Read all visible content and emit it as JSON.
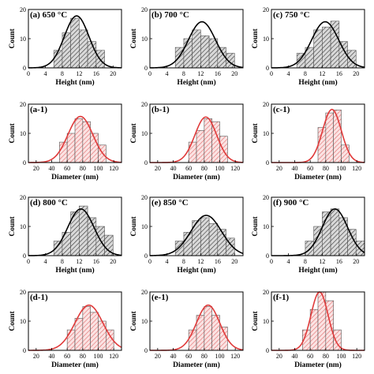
{
  "colors": {
    "height_bar_hatch": "#333333",
    "height_bar_fill": "#d9d9d9",
    "height_fit": "#000000",
    "diameter_bar_hatch": "#e06a6a",
    "diameter_bar_fill": "#fbe3e3",
    "diameter_fit": "#e03a3a",
    "axis": "#000000"
  },
  "chart_data": [
    {
      "id": "a",
      "type": "bar",
      "panel_label": "(a) 650 °C",
      "xlabel": "Height (nm)",
      "ylabel": "Count",
      "kind": "height",
      "xlim": [
        0,
        22
      ],
      "ylim": [
        0,
        20
      ],
      "xticks": [
        0,
        4,
        8,
        12,
        16,
        20
      ],
      "yticks": [
        0,
        10,
        20
      ],
      "bin_width": 2,
      "bin_lefts": [
        6,
        8,
        10,
        12,
        14,
        16
      ],
      "values": [
        6,
        12,
        17,
        13,
        9,
        6
      ],
      "fit": {
        "mean": 11.4,
        "sigma": 2.9,
        "peak": 17.8
      }
    },
    {
      "id": "b",
      "type": "bar",
      "panel_label": "(b) 700 °C",
      "xlabel": "Height (nm)",
      "ylabel": "Count",
      "kind": "height",
      "xlim": [
        0,
        22
      ],
      "ylim": [
        0,
        20
      ],
      "xticks": [
        0,
        4,
        8,
        12,
        16,
        20
      ],
      "yticks": [
        0,
        10,
        20
      ],
      "bin_width": 2,
      "bin_lefts": [
        6,
        8,
        10,
        12,
        14,
        16,
        18
      ],
      "values": [
        7,
        10,
        13,
        11,
        10,
        7,
        5
      ],
      "fit": {
        "mean": 12.3,
        "sigma": 3.2,
        "peak": 15.8
      }
    },
    {
      "id": "c",
      "type": "bar",
      "panel_label": "(c) 750 °C",
      "xlabel": "Height (nm)",
      "ylabel": "Count",
      "kind": "height",
      "xlim": [
        0,
        22
      ],
      "ylim": [
        0,
        20
      ],
      "xticks": [
        0,
        4,
        8,
        12,
        16,
        20
      ],
      "yticks": [
        0,
        10,
        20
      ],
      "bin_width": 2,
      "bin_lefts": [
        6,
        8,
        10,
        12,
        14,
        16,
        18
      ],
      "values": [
        5,
        7,
        13,
        14,
        16,
        9,
        6
      ],
      "fit": {
        "mean": 12.7,
        "sigma": 3.2,
        "peak": 15.8
      }
    },
    {
      "id": "a-1",
      "type": "bar",
      "panel_label": "(a-1)",
      "xlabel": "Diameter (nm)",
      "ylabel": "Count",
      "kind": "diameter",
      "xlim": [
        10,
        130
      ],
      "ylim": [
        0,
        20
      ],
      "xticks": [
        20,
        40,
        60,
        80,
        100,
        120
      ],
      "yticks": [
        0,
        10,
        20
      ],
      "bin_width": 10,
      "bin_lefts": [
        50,
        60,
        70,
        80,
        90,
        100
      ],
      "values": [
        7,
        10,
        15,
        14,
        10,
        6
      ],
      "fit": {
        "mean": 77,
        "sigma": 16,
        "peak": 15.8
      }
    },
    {
      "id": "b-1",
      "type": "bar",
      "panel_label": "(b-1)",
      "xlabel": "Diameter (nm)",
      "ylabel": "Count",
      "kind": "diameter",
      "xlim": [
        10,
        130
      ],
      "ylim": [
        0,
        20
      ],
      "xticks": [
        20,
        40,
        60,
        80,
        100,
        120
      ],
      "yticks": [
        0,
        10,
        20
      ],
      "bin_width": 10,
      "bin_lefts": [
        60,
        70,
        80,
        90,
        100
      ],
      "values": [
        7,
        11,
        15,
        14,
        9
      ],
      "fit": {
        "mean": 82,
        "sigma": 14,
        "peak": 15.6
      }
    },
    {
      "id": "c-1",
      "type": "bar",
      "panel_label": "(c-1)",
      "xlabel": "Diameter (nm)",
      "ylabel": "Count",
      "kind": "diameter",
      "xlim": [
        10,
        130
      ],
      "ylim": [
        0,
        20
      ],
      "xticks": [
        20,
        40,
        60,
        80,
        100,
        120
      ],
      "yticks": [
        0,
        10,
        20
      ],
      "bin_width": 10,
      "bin_lefts": [
        70,
        80,
        90,
        100
      ],
      "values": [
        12,
        17,
        18,
        6
      ],
      "fit": {
        "mean": 88,
        "sigma": 12,
        "peak": 18.2
      }
    },
    {
      "id": "d",
      "type": "bar",
      "panel_label": "(d) 800 °C",
      "xlabel": "Height (nm)",
      "ylabel": "Count",
      "kind": "height",
      "xlim": [
        0,
        22
      ],
      "ylim": [
        0,
        20
      ],
      "xticks": [
        0,
        4,
        8,
        12,
        16,
        20
      ],
      "yticks": [
        0,
        10,
        20
      ],
      "bin_width": 2,
      "bin_lefts": [
        6,
        8,
        10,
        12,
        14,
        16,
        18
      ],
      "values": [
        5,
        8,
        15,
        17,
        13,
        10,
        7
      ],
      "fit": {
        "mean": 12.4,
        "sigma": 3.1,
        "peak": 16
      }
    },
    {
      "id": "e",
      "type": "bar",
      "panel_label": "(e) 850 °C",
      "xlabel": "Height (nm)",
      "ylabel": "Count",
      "kind": "height",
      "xlim": [
        0,
        22
      ],
      "ylim": [
        0,
        20
      ],
      "xticks": [
        0,
        4,
        8,
        12,
        16,
        20
      ],
      "yticks": [
        0,
        10,
        20
      ],
      "bin_width": 2,
      "bin_lefts": [
        6,
        8,
        10,
        12,
        14,
        16,
        18
      ],
      "values": [
        5,
        8,
        12,
        13,
        11,
        9,
        6
      ],
      "fit": {
        "mean": 13.3,
        "sigma": 3.6,
        "peak": 13.8
      }
    },
    {
      "id": "f",
      "type": "bar",
      "panel_label": "(f) 900 °C",
      "xlabel": "Height (nm)",
      "ylabel": "Count",
      "kind": "height",
      "xlim": [
        0,
        22
      ],
      "ylim": [
        0,
        20
      ],
      "xticks": [
        0,
        4,
        8,
        12,
        16,
        20
      ],
      "yticks": [
        0,
        10,
        20
      ],
      "bin_width": 2,
      "bin_lefts": [
        8,
        10,
        12,
        14,
        16,
        18,
        20
      ],
      "values": [
        5,
        10,
        15,
        16,
        13,
        9,
        5
      ],
      "fit": {
        "mean": 15,
        "sigma": 3,
        "peak": 16
      }
    },
    {
      "id": "d-1",
      "type": "bar",
      "panel_label": "(d-1)",
      "xlabel": "Diameter (nm)",
      "ylabel": "Count",
      "kind": "diameter",
      "xlim": [
        10,
        130
      ],
      "ylim": [
        0,
        20
      ],
      "xticks": [
        20,
        40,
        60,
        80,
        100,
        120
      ],
      "yticks": [
        0,
        10,
        20
      ],
      "bin_width": 10,
      "bin_lefts": [
        60,
        70,
        80,
        90,
        100,
        110
      ],
      "values": [
        7,
        11,
        15,
        13,
        10,
        7
      ],
      "fit": {
        "mean": 88,
        "sigma": 18,
        "peak": 15.5
      }
    },
    {
      "id": "e-1",
      "type": "bar",
      "panel_label": "(e-1)",
      "xlabel": "Diameter (nm)",
      "ylabel": "Count",
      "kind": "diameter",
      "xlim": [
        10,
        130
      ],
      "ylim": [
        0,
        20
      ],
      "xticks": [
        20,
        40,
        60,
        80,
        100,
        120
      ],
      "yticks": [
        0,
        10,
        20
      ],
      "bin_width": 10,
      "bin_lefts": [
        60,
        70,
        80,
        90,
        100
      ],
      "values": [
        7,
        12,
        15,
        12,
        8
      ],
      "fit": {
        "mean": 85,
        "sigma": 15,
        "peak": 15.5
      }
    },
    {
      "id": "f-1",
      "type": "bar",
      "panel_label": "(f-1)",
      "xlabel": "Diameter (nm)",
      "ylabel": "Count",
      "kind": "diameter",
      "xlim": [
        10,
        130
      ],
      "ylim": [
        0,
        20
      ],
      "xticks": [
        20,
        40,
        60,
        80,
        100,
        120
      ],
      "yticks": [
        0,
        10,
        20
      ],
      "bin_width": 10,
      "bin_lefts": [
        50,
        60,
        70,
        80,
        90
      ],
      "values": [
        7,
        14,
        20,
        17,
        7
      ],
      "fit": {
        "mean": 72,
        "sigma": 11,
        "peak": 20
      }
    }
  ]
}
